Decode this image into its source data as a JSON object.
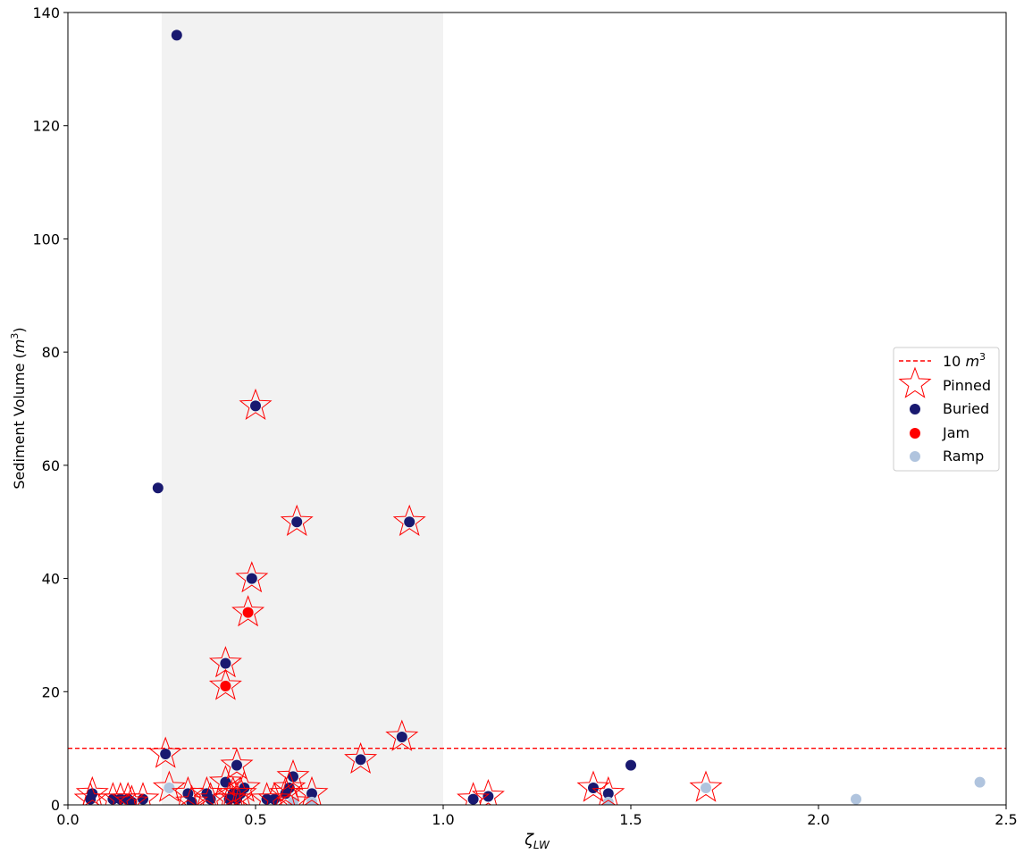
{
  "chart_data": {
    "type": "scatter",
    "xlabel": "ζLW",
    "xlabel_main": "ζ",
    "xlabel_sub": "LW",
    "ylabel": "Sediment Volume (m³)",
    "ylabel_main": "Sediment Volume (",
    "ylabel_unit": "m",
    "ylabel_unit_exp": "3",
    "ylabel_close": ")",
    "xlim": [
      0.0,
      2.5
    ],
    "ylim": [
      0,
      140
    ],
    "xticks": [
      "0.0",
      "0.5",
      "1.0",
      "1.5",
      "2.0",
      "2.5"
    ],
    "xtick_values": [
      0.0,
      0.5,
      1.0,
      1.5,
      2.0,
      2.5
    ],
    "yticks": [
      "0",
      "20",
      "40",
      "60",
      "80",
      "100",
      "120",
      "140"
    ],
    "ytick_values": [
      0,
      20,
      40,
      60,
      80,
      100,
      120,
      140
    ],
    "grid": false,
    "legend_position": "center-right",
    "shaded_region": {
      "x": [
        0.25,
        1.0
      ],
      "color": "#f2f2f2"
    },
    "threshold_line": {
      "y": 10,
      "label_main": "10 ",
      "label_unit": "m",
      "label_exp": "3",
      "color": "#ff0000",
      "style": "dashed"
    },
    "colors": {
      "buried": "#191970",
      "jam": "#ff0000",
      "ramp": "#b0c4de",
      "pinned": "#ff0000"
    },
    "series": [
      {
        "name": "Buried",
        "color": "#191970",
        "points": [
          [
            0.29,
            136
          ],
          [
            0.24,
            56
          ],
          [
            0.5,
            70.5
          ],
          [
            0.61,
            50
          ],
          [
            0.91,
            50
          ],
          [
            0.49,
            40
          ],
          [
            0.42,
            25
          ],
          [
            0.26,
            9
          ],
          [
            0.78,
            8
          ],
          [
            0.89,
            12
          ],
          [
            0.45,
            7
          ],
          [
            0.6,
            5
          ],
          [
            0.42,
            4
          ],
          [
            0.47,
            3
          ],
          [
            1.4,
            3
          ],
          [
            1.44,
            2
          ],
          [
            1.5,
            7
          ],
          [
            1.12,
            1.5
          ],
          [
            1.08,
            1
          ],
          [
            0.06,
            1
          ],
          [
            0.065,
            2
          ],
          [
            0.12,
            1
          ],
          [
            0.14,
            1
          ],
          [
            0.16,
            1
          ],
          [
            0.17,
            0.5
          ],
          [
            0.2,
            1
          ],
          [
            0.32,
            2
          ],
          [
            0.33,
            0.5
          ],
          [
            0.37,
            2
          ],
          [
            0.38,
            1
          ],
          [
            0.43,
            1
          ],
          [
            0.44,
            2
          ],
          [
            0.45,
            1
          ],
          [
            0.46,
            2
          ],
          [
            0.53,
            1
          ],
          [
            0.55,
            1
          ],
          [
            0.58,
            2
          ],
          [
            0.59,
            3
          ],
          [
            0.65,
            2
          ]
        ]
      },
      {
        "name": "Jam",
        "color": "#ff0000",
        "points": [
          [
            0.48,
            34
          ],
          [
            0.42,
            21
          ]
        ]
      },
      {
        "name": "Ramp",
        "color": "#b0c4de",
        "points": [
          [
            0.27,
            3
          ],
          [
            1.7,
            3
          ],
          [
            2.1,
            1
          ],
          [
            2.43,
            4
          ],
          [
            1.44,
            0.5
          ],
          [
            0.6,
            0.5
          ],
          [
            0.65,
            0.5
          ]
        ]
      },
      {
        "name": "Pinned",
        "color": "#ff0000",
        "marker": "star-outline",
        "points": [
          [
            0.5,
            70.5
          ],
          [
            0.61,
            50
          ],
          [
            0.91,
            50
          ],
          [
            0.49,
            40
          ],
          [
            0.48,
            34
          ],
          [
            0.42,
            25
          ],
          [
            0.42,
            21
          ],
          [
            0.26,
            9
          ],
          [
            0.78,
            8
          ],
          [
            0.89,
            12
          ],
          [
            0.45,
            7
          ],
          [
            0.6,
            5
          ],
          [
            0.27,
            3
          ],
          [
            0.42,
            4
          ],
          [
            0.47,
            3
          ],
          [
            1.4,
            3
          ],
          [
            1.44,
            2
          ],
          [
            1.7,
            3
          ],
          [
            1.08,
            1
          ],
          [
            1.12,
            1.5
          ],
          [
            0.06,
            1
          ],
          [
            0.065,
            2
          ],
          [
            0.12,
            1
          ],
          [
            0.14,
            1
          ],
          [
            0.16,
            1
          ],
          [
            0.17,
            0.5
          ],
          [
            0.2,
            1
          ],
          [
            0.32,
            2
          ],
          [
            0.33,
            0.5
          ],
          [
            0.37,
            2
          ],
          [
            0.38,
            1
          ],
          [
            0.43,
            1
          ],
          [
            0.44,
            2
          ],
          [
            0.45,
            1
          ],
          [
            0.46,
            2
          ],
          [
            0.53,
            1
          ],
          [
            0.55,
            1
          ],
          [
            0.58,
            2
          ],
          [
            0.59,
            3
          ],
          [
            0.65,
            2
          ],
          [
            0.6,
            0.5
          ]
        ]
      }
    ],
    "legend": [
      {
        "label": "10 m³",
        "kind": "line"
      },
      {
        "label": "Pinned",
        "kind": "star"
      },
      {
        "label": "Buried",
        "kind": "dot",
        "color": "#191970"
      },
      {
        "label": "Jam",
        "kind": "dot",
        "color": "#ff0000"
      },
      {
        "label": "Ramp",
        "kind": "dot",
        "color": "#b0c4de"
      }
    ]
  }
}
